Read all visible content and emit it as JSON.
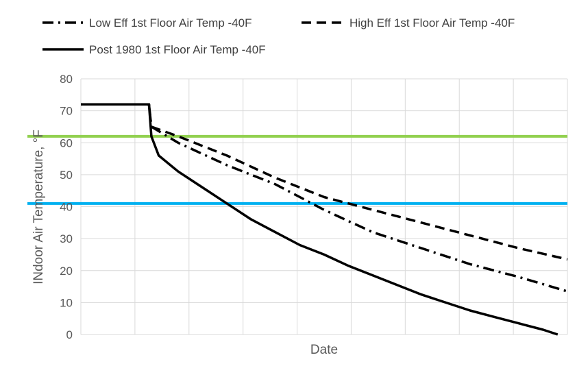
{
  "chart_data": {
    "type": "line",
    "title": "",
    "xlabel": "Date",
    "ylabel": "INdoor Air Temperature, °F",
    "ylim": [
      0,
      80
    ],
    "y_ticks": [
      0,
      10,
      20,
      30,
      40,
      50,
      60,
      70,
      80
    ],
    "x_gridlines": 9,
    "grid": true,
    "legend_position": "top",
    "series": [
      {
        "name": "Low Eff 1st Floor Air Temp -40F",
        "style": "dash-dot",
        "color": "#000000",
        "points": [
          [
            0,
            72
          ],
          [
            0.14,
            72
          ],
          [
            0.145,
            65
          ],
          [
            0.2,
            60
          ],
          [
            0.3,
            53
          ],
          [
            0.4,
            47
          ],
          [
            0.45,
            43
          ],
          [
            0.5,
            39
          ],
          [
            0.6,
            32
          ],
          [
            0.7,
            27
          ],
          [
            0.8,
            22
          ],
          [
            0.9,
            18
          ],
          [
            1.0,
            13.5
          ]
        ]
      },
      {
        "name": "High Eff 1st Floor Air Temp -40F",
        "style": "dashed",
        "color": "#000000",
        "points": [
          [
            0,
            72
          ],
          [
            0.14,
            72
          ],
          [
            0.145,
            65
          ],
          [
            0.2,
            62
          ],
          [
            0.3,
            56
          ],
          [
            0.4,
            49
          ],
          [
            0.5,
            43
          ],
          [
            0.6,
            39
          ],
          [
            0.7,
            35
          ],
          [
            0.8,
            31
          ],
          [
            0.9,
            27
          ],
          [
            1.0,
            23.5
          ]
        ]
      },
      {
        "name": "Post 1980 1st Floor Air Temp -40F",
        "style": "solid",
        "color": "#000000",
        "points": [
          [
            0,
            72
          ],
          [
            0.14,
            72
          ],
          [
            0.145,
            62
          ],
          [
            0.16,
            56
          ],
          [
            0.2,
            51
          ],
          [
            0.25,
            46
          ],
          [
            0.3,
            41
          ],
          [
            0.35,
            36
          ],
          [
            0.4,
            32
          ],
          [
            0.45,
            28
          ],
          [
            0.5,
            25
          ],
          [
            0.55,
            21.5
          ],
          [
            0.6,
            18.5
          ],
          [
            0.65,
            15.5
          ],
          [
            0.7,
            12.5
          ],
          [
            0.75,
            10
          ],
          [
            0.8,
            7.5
          ],
          [
            0.85,
            5.5
          ],
          [
            0.9,
            3.5
          ],
          [
            0.95,
            1.5
          ],
          [
            0.98,
            0
          ]
        ]
      }
    ],
    "reference_lines": [
      {
        "value": 62,
        "color": "#92d050"
      },
      {
        "value": 41,
        "color": "#00b0f0"
      }
    ]
  }
}
